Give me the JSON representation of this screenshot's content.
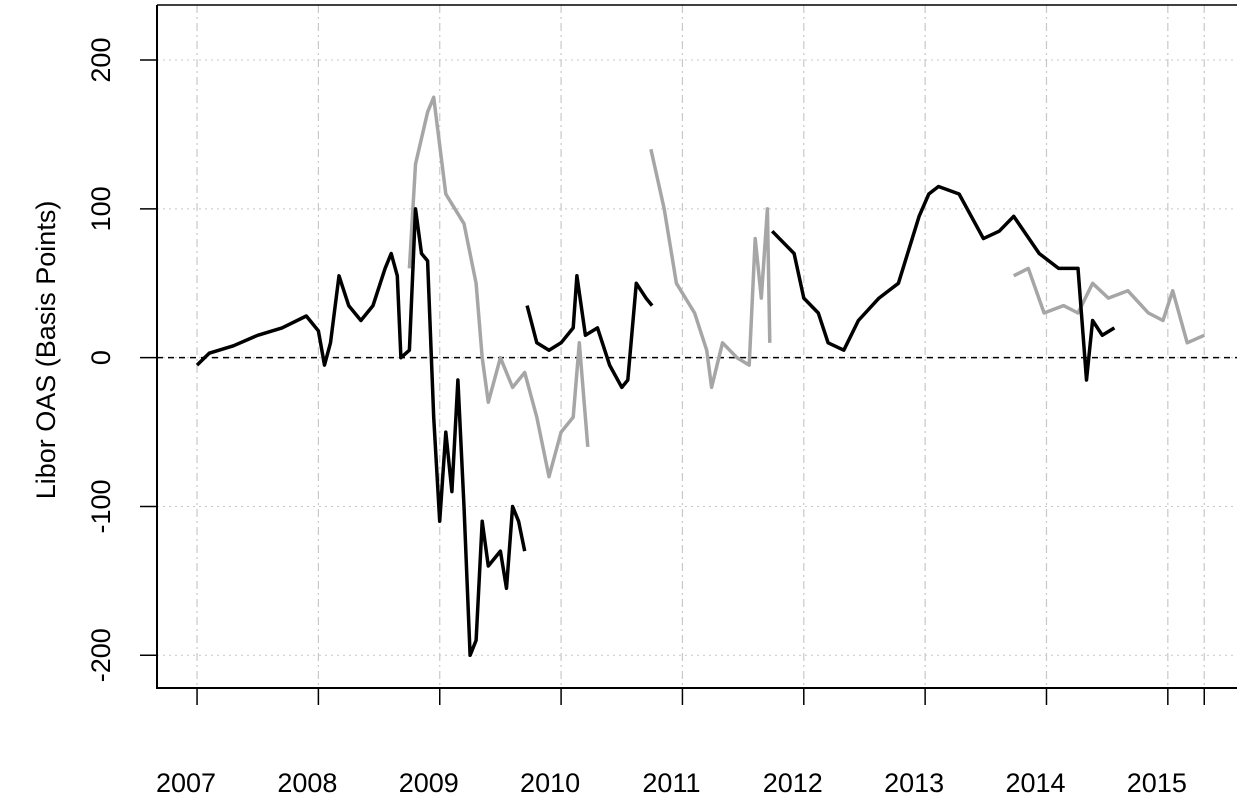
{
  "chart_data": {
    "type": "line",
    "ylabel": "Libor OAS (Basis Points)",
    "xlim": [
      2006.67,
      2015.57
    ],
    "ylim": [
      -222,
      237
    ],
    "xticks": [
      2007,
      2008,
      2009,
      2010,
      2011,
      2012,
      2013,
      2014,
      2015,
      {
        "value": 2015.3,
        "label": null
      }
    ],
    "yticks": [
      -200,
      -100,
      0,
      100,
      200
    ],
    "grid": true,
    "hline": 0,
    "series": [
      {
        "color": "#a6a6a6",
        "x": [
          2008.75,
          2008.8,
          2008.9,
          2008.95,
          2009.05,
          2009.2,
          2009.3,
          2009.35,
          2009.4,
          2009.5,
          2009.6,
          2009.7,
          2009.8,
          2009.9,
          2010.0,
          2010.1,
          2010.15,
          2010.22
        ],
        "values": [
          60,
          130,
          165,
          175,
          110,
          90,
          50,
          0,
          -30,
          0,
          -20,
          -10,
          -40,
          -80,
          -50,
          -40,
          10,
          -60
        ]
      },
      {
        "color": "#a6a6a6",
        "x": [
          2010.74,
          2010.85,
          2010.95,
          2011.1,
          2011.2,
          2011.24,
          2011.33,
          2011.45,
          2011.55,
          2011.6,
          2011.65,
          2011.7,
          2011.72
        ],
        "values": [
          140,
          100,
          50,
          30,
          5,
          -20,
          10,
          0,
          -5,
          80,
          40,
          100,
          10
        ]
      },
      {
        "color": "#a6a6a6",
        "x": [
          2013.73,
          2013.85,
          2013.98,
          2014.14,
          2014.26,
          2014.38,
          2014.51,
          2014.67,
          2014.84,
          2014.96,
          2015.04,
          2015.16,
          2015.3
        ],
        "values": [
          55,
          60,
          30,
          35,
          30,
          50,
          40,
          45,
          30,
          25,
          45,
          10,
          15
        ]
      },
      {
        "color": "#000000",
        "x": [
          2007.0,
          2007.1,
          2007.3,
          2007.5,
          2007.7,
          2007.9,
          2008.0,
          2008.05,
          2008.1,
          2008.17,
          2008.25,
          2008.35,
          2008.45,
          2008.55,
          2008.6,
          2008.65,
          2008.68,
          2008.75,
          2008.8,
          2008.85,
          2008.9,
          2008.95,
          2009.0,
          2009.05,
          2009.1,
          2009.15,
          2009.2,
          2009.25,
          2009.3,
          2009.35,
          2009.4,
          2009.5,
          2009.55,
          2009.6,
          2009.65,
          2009.7
        ],
        "values": [
          -5,
          3,
          8,
          15,
          20,
          28,
          18,
          -5,
          10,
          55,
          35,
          25,
          35,
          60,
          70,
          55,
          0,
          5,
          100,
          70,
          65,
          -40,
          -110,
          -50,
          -90,
          -15,
          -100,
          -200,
          -190,
          -110,
          -140,
          -130,
          -155,
          -100,
          -110,
          -130
        ]
      },
      {
        "color": "#000000",
        "x": [
          2009.72,
          2009.8,
          2009.9,
          2010.0,
          2010.1,
          2010.13,
          2010.2,
          2010.3,
          2010.4,
          2010.5,
          2010.55,
          2010.62,
          2010.7,
          2010.75
        ],
        "values": [
          35,
          10,
          5,
          10,
          20,
          55,
          15,
          20,
          -5,
          -20,
          -15,
          50,
          40,
          35
        ]
      },
      {
        "color": "#000000",
        "x": [
          2011.74,
          2011.92,
          2012.0,
          2012.12,
          2012.2,
          2012.33,
          2012.45,
          2012.62,
          2012.78,
          2012.95,
          2013.03,
          2013.11,
          2013.28,
          2013.48,
          2013.61,
          2013.73,
          2013.94,
          2014.1,
          2014.26,
          2014.33,
          2014.38,
          2014.46,
          2014.56
        ],
        "values": [
          85,
          70,
          40,
          30,
          10,
          5,
          25,
          40,
          50,
          95,
          110,
          115,
          110,
          80,
          85,
          95,
          70,
          60,
          60,
          -15,
          25,
          15,
          20
        ]
      }
    ]
  }
}
